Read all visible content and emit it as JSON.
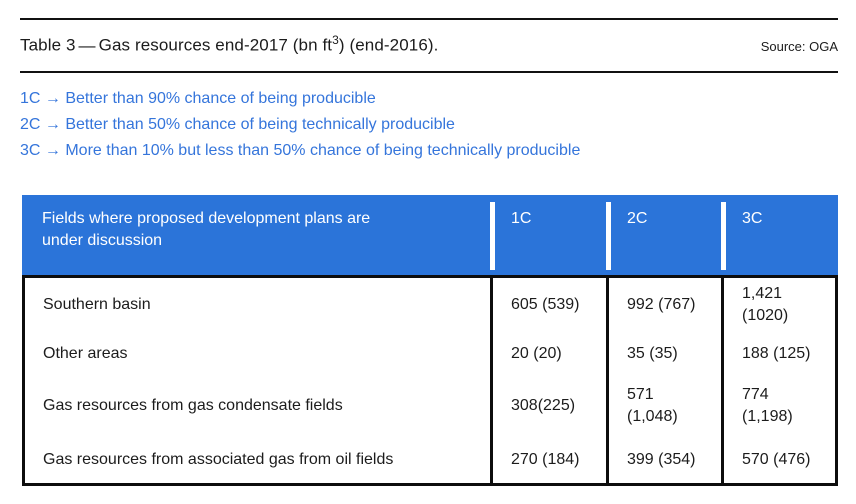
{
  "header": {
    "title_prefix": "Table 3",
    "title_dash": "—",
    "title_mid": "Gas resources end-2017 (bn ft",
    "title_sup": "3",
    "title_suffix": ") (end-2016).",
    "source": "Source: OGA"
  },
  "legend": {
    "items": [
      "1C → Better than 90% chance of being producible",
      "2C → Better than 50% chance of being technically producible",
      "3C → More than 10% but less than 50% chance of being technically producible"
    ]
  },
  "table": {
    "header_label": "Fields where proposed development plans are\nunder discussion",
    "columns": [
      "1C",
      "2C",
      "3C"
    ],
    "rows": [
      {
        "label": "Southern basin",
        "c1": "605 (539)",
        "c2": "992 (767)",
        "c3": "1,421\n(1020)"
      },
      {
        "label": "Other areas",
        "c1": "20 (20)",
        "c2": "35 (35)",
        "c3": "188 (125)"
      },
      {
        "label": "Gas resources from gas condensate fields",
        "c1": "308(225)",
        "c2": "571\n(1,048)",
        "c3": "774\n(1,198)"
      },
      {
        "label": "Gas resources from associated gas from oil fields",
        "c1": "270 (184)",
        "c2": "399 (354)",
        "c3": "570 (476)"
      }
    ]
  },
  "colors": {
    "header_bg": "#2b74d9",
    "legend_text": "#3575db",
    "border": "#0d0d0d"
  }
}
